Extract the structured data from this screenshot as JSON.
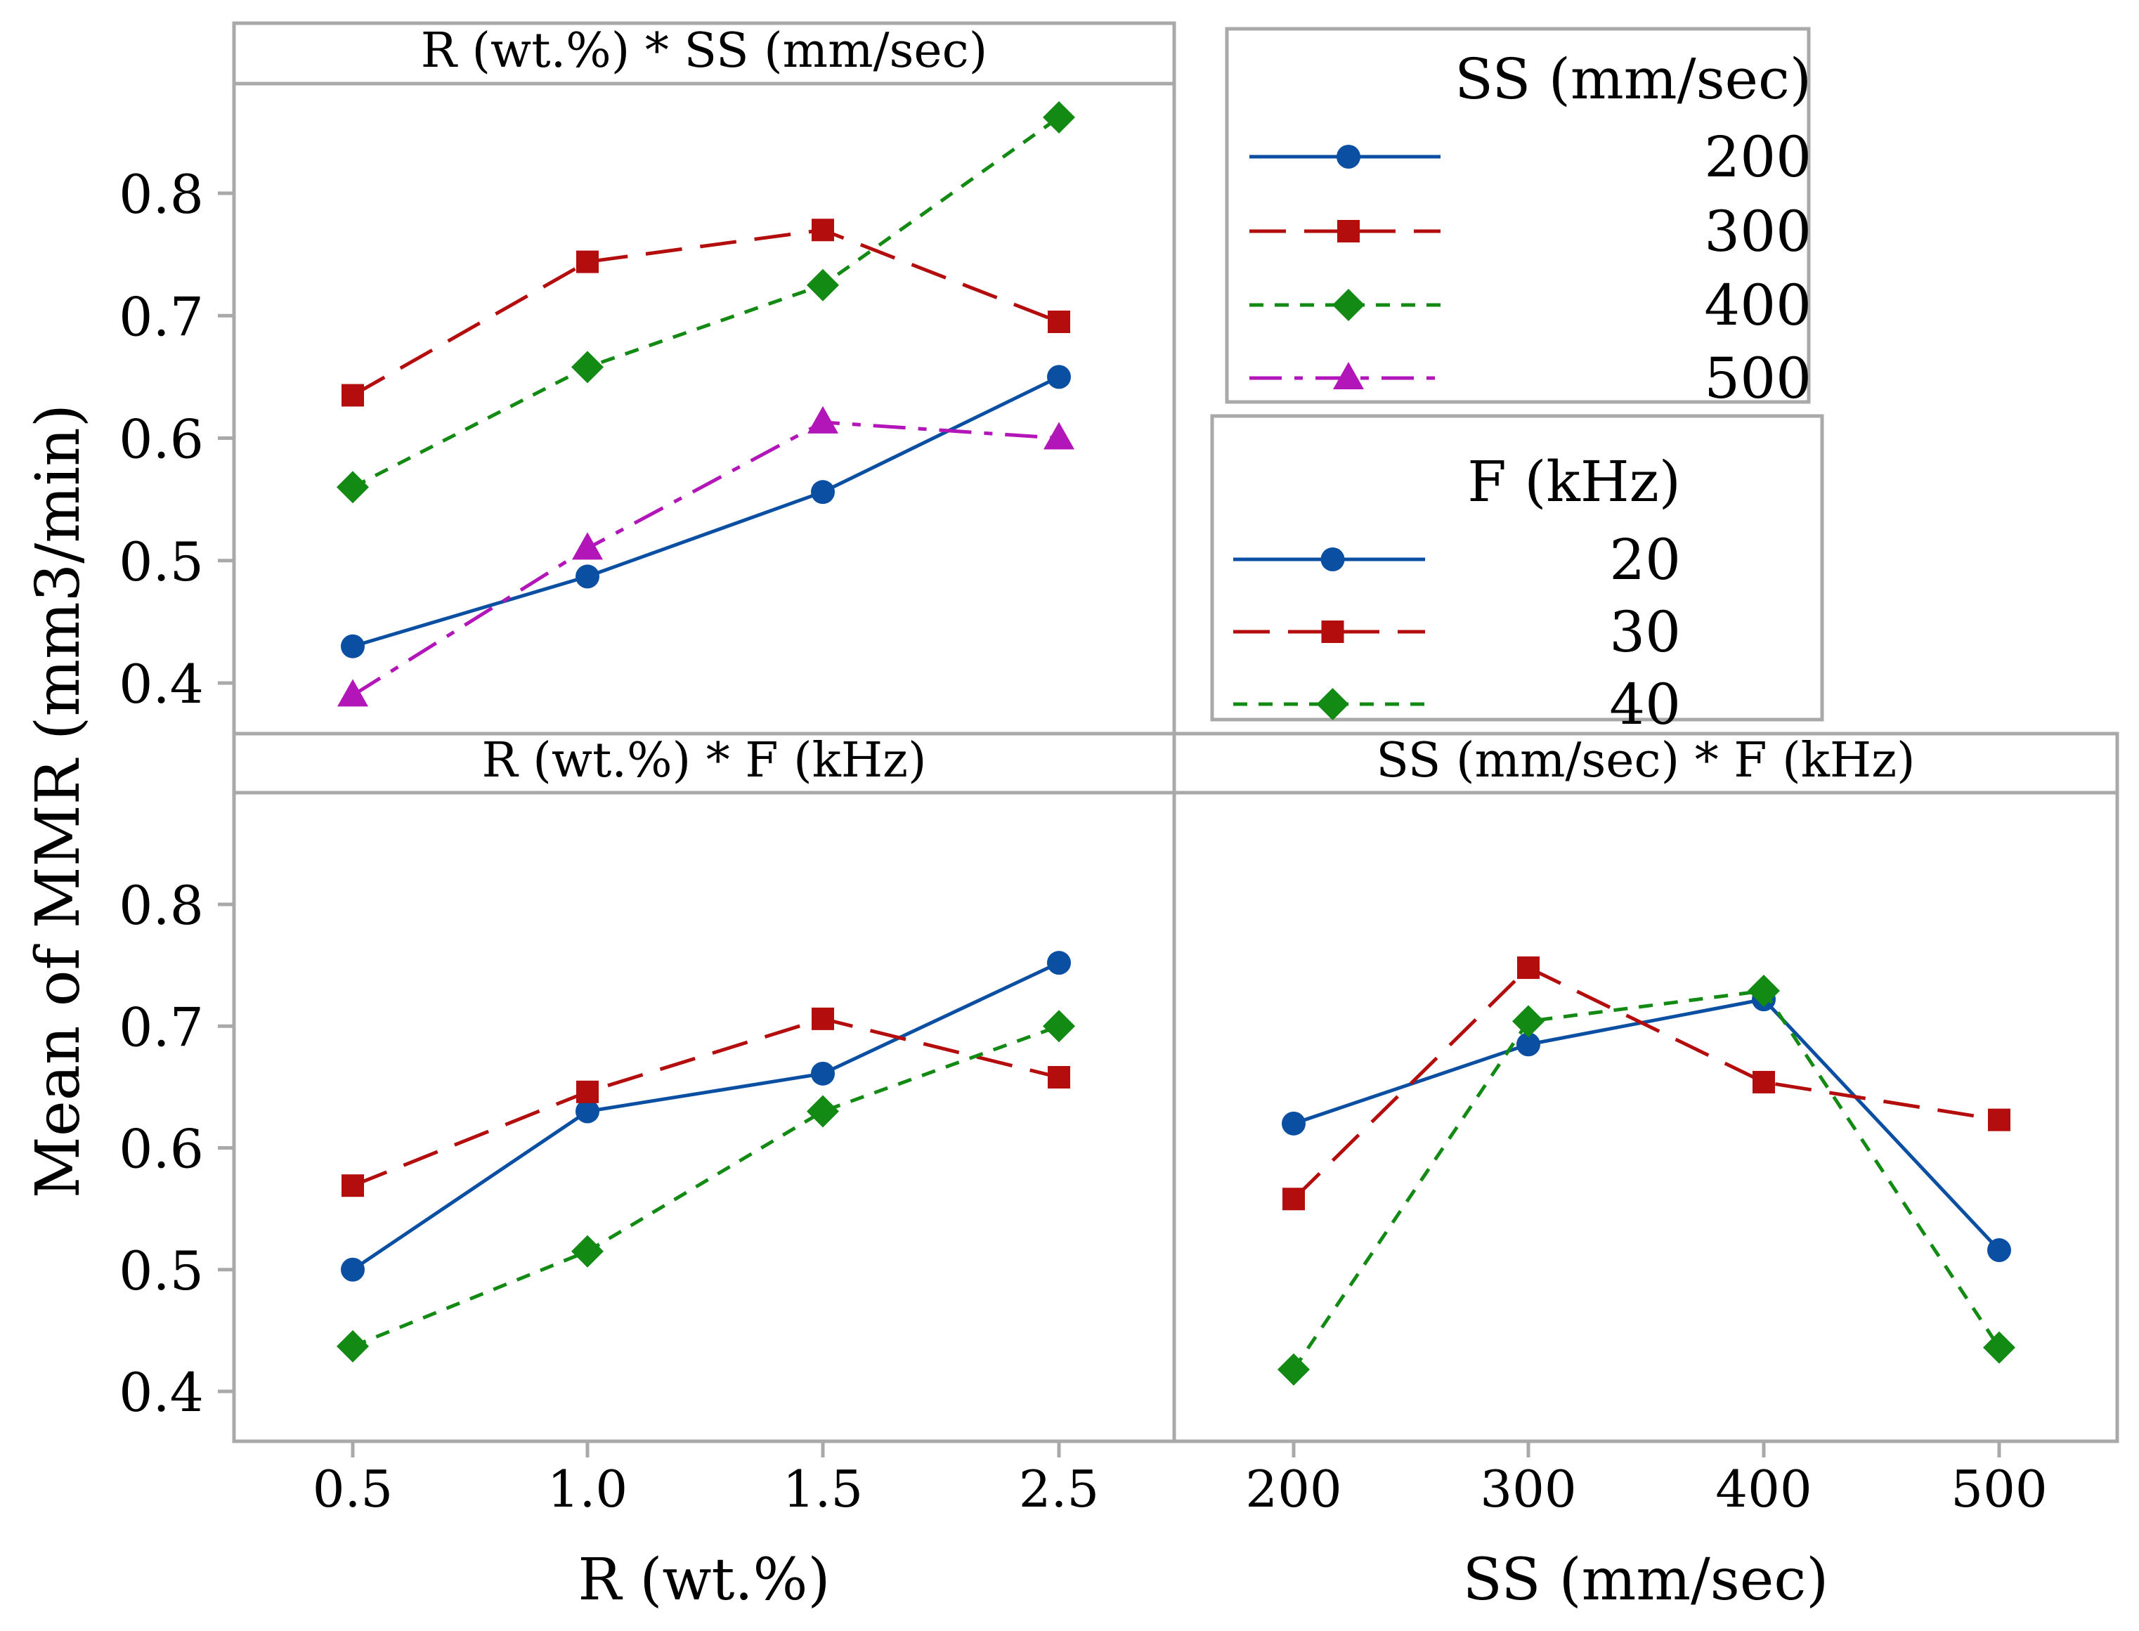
{
  "figure": {
    "ylabel": "Mean of MMR (mm3/min)",
    "y_ticks": [
      "0.4",
      "0.5",
      "0.6",
      "0.7",
      "0.8"
    ]
  },
  "legends": {
    "ss": {
      "title": "SS (mm/sec)",
      "entries": [
        "200",
        "300",
        "400",
        "500"
      ]
    },
    "f": {
      "title": "F (kHz)",
      "entries": [
        "20",
        "30",
        "40"
      ]
    }
  },
  "series_styles": [
    {
      "color": "#0b4fa3",
      "marker": "circle",
      "dash": "solid"
    },
    {
      "color": "#b30d0d",
      "marker": "square",
      "dash": "long"
    },
    {
      "color": "#138a13",
      "marker": "diamond",
      "dash": "short"
    },
    {
      "color": "#b316b8",
      "marker": "triangle",
      "dash": "dashdot"
    }
  ],
  "chart_data": [
    {
      "type": "line",
      "title": "R (wt.%) * SS (mm/sec)",
      "categories": [
        "0.5",
        "1.0",
        "1.5",
        "2.5"
      ],
      "xlabel": "R (wt.%)",
      "ylabel": "Mean of MMR (mm3/min)",
      "ylim": [
        0.35,
        0.9
      ],
      "series": [
        {
          "name": "200",
          "values": [
            0.43,
            0.487,
            0.556,
            0.65
          ]
        },
        {
          "name": "300",
          "values": [
            0.635,
            0.744,
            0.77,
            0.695
          ]
        },
        {
          "name": "400",
          "values": [
            0.56,
            0.658,
            0.725,
            0.862
          ]
        },
        {
          "name": "500",
          "values": [
            0.39,
            0.51,
            0.613,
            0.6
          ]
        }
      ]
    },
    {
      "type": "line",
      "title": "R (wt.%) * F (kHz)",
      "categories": [
        "0.5",
        "1.0",
        "1.5",
        "2.5"
      ],
      "xlabel": "R (wt.%)",
      "ylabel": "Mean of MMR (mm3/min)",
      "ylim": [
        0.35,
        0.9
      ],
      "series": [
        {
          "name": "20",
          "values": [
            0.5,
            0.63,
            0.661,
            0.752
          ]
        },
        {
          "name": "30",
          "values": [
            0.569,
            0.646,
            0.706,
            0.658
          ]
        },
        {
          "name": "40",
          "values": [
            0.437,
            0.515,
            0.63,
            0.7
          ]
        }
      ]
    },
    {
      "type": "line",
      "title": "SS (mm/sec) * F (kHz)",
      "categories": [
        "200",
        "300",
        "400",
        "500"
      ],
      "xlabel": "SS (mm/sec)",
      "ylabel": "Mean of MMR (mm3/min)",
      "ylim": [
        0.35,
        0.9
      ],
      "series": [
        {
          "name": "20",
          "values": [
            0.62,
            0.685,
            0.722,
            0.516
          ]
        },
        {
          "name": "30",
          "values": [
            0.558,
            0.748,
            0.654,
            0.623
          ]
        },
        {
          "name": "40",
          "values": [
            0.418,
            0.704,
            0.729,
            0.436
          ]
        }
      ]
    }
  ]
}
